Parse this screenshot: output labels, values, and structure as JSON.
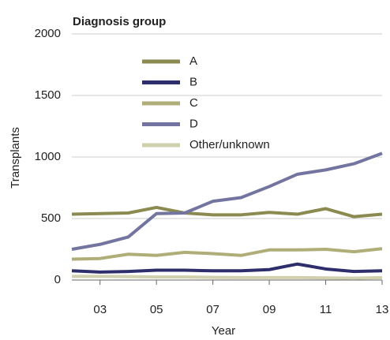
{
  "chart_data": {
    "type": "line",
    "title": "Diagnosis group",
    "x_label": "Year",
    "y_label": "Transplants",
    "categories": [
      null,
      "03",
      null,
      "05",
      null,
      "07",
      null,
      "09",
      null,
      "11",
      null,
      "13"
    ],
    "series": [
      {
        "name": "A",
        "color": "#8b8a50",
        "values": [
          535,
          540,
          545,
          590,
          545,
          530,
          530,
          550,
          535,
          580,
          515,
          535
        ]
      },
      {
        "name": "B",
        "color": "#2d2e6b",
        "values": [
          75,
          65,
          70,
          80,
          80,
          75,
          75,
          85,
          130,
          90,
          70,
          75
        ]
      },
      {
        "name": "C",
        "color": "#b0ae78",
        "values": [
          170,
          175,
          210,
          200,
          225,
          215,
          200,
          245,
          245,
          250,
          230,
          255
        ]
      },
      {
        "name": "D",
        "color": "#7375a0",
        "values": [
          250,
          290,
          350,
          540,
          545,
          640,
          670,
          760,
          860,
          895,
          945,
          1030
        ]
      },
      {
        "name": "Other/unknown",
        "color": "#d0cfae",
        "values": [
          30,
          30,
          28,
          25,
          25,
          22,
          20,
          20,
          20,
          18,
          15,
          20
        ]
      }
    ],
    "ylim": [
      0,
      2000
    ],
    "yticks": [
      0,
      500,
      1000,
      1500,
      2000
    ],
    "grid": true
  }
}
